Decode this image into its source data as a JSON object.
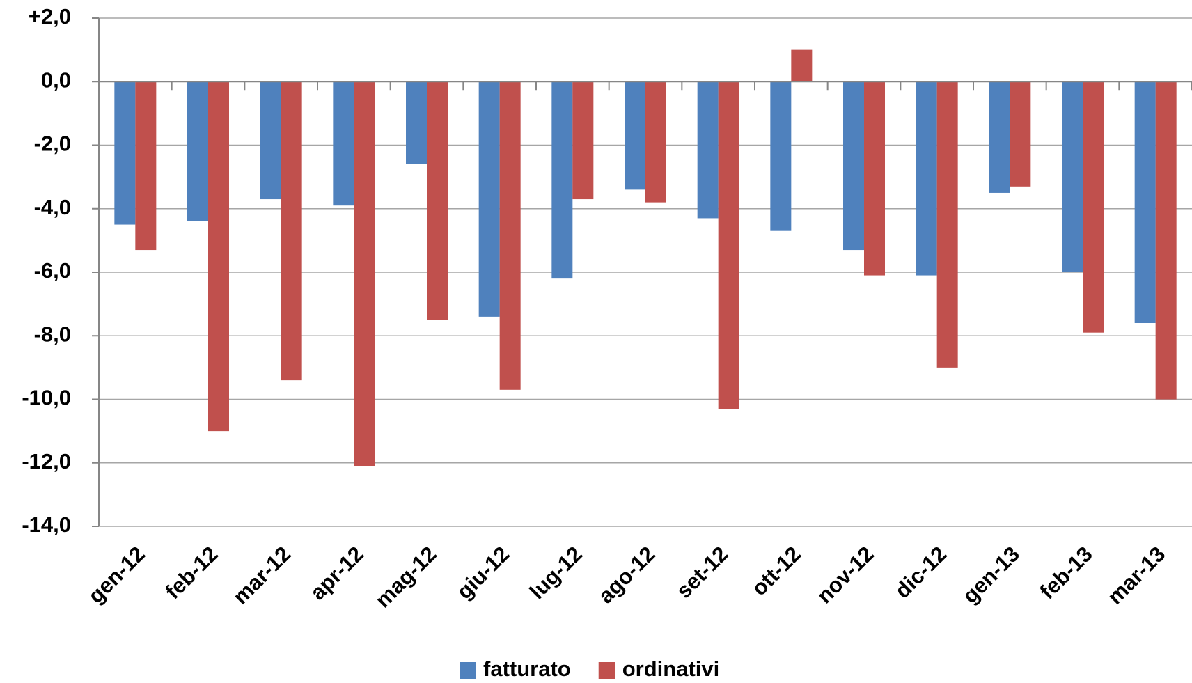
{
  "chart_data": {
    "type": "bar",
    "categories": [
      "gen-12",
      "feb-12",
      "mar-12",
      "apr-12",
      "mag-12",
      "giu-12",
      "lug-12",
      "ago-12",
      "set-12",
      "ott-12",
      "nov-12",
      "dic-12",
      "gen-13",
      "feb-13",
      "mar-13"
    ],
    "series": [
      {
        "name": "fatturato",
        "color": "#4f81bd",
        "values": [
          -4.5,
          -4.4,
          -3.7,
          -3.9,
          -2.6,
          -7.4,
          -6.2,
          -3.4,
          -4.3,
          -4.7,
          -5.3,
          -6.1,
          -3.5,
          -6.0,
          -7.6
        ]
      },
      {
        "name": "ordinativi",
        "color": "#c0504d",
        "values": [
          -5.3,
          -11.0,
          -9.4,
          -12.1,
          -7.5,
          -9.7,
          -3.7,
          -3.8,
          -10.3,
          1.0,
          -6.1,
          -9.0,
          -3.3,
          -7.9,
          -10.0
        ]
      }
    ],
    "ylim": [
      -14,
      2
    ],
    "yticks": [
      {
        "value": 2,
        "label": "+2,0"
      },
      {
        "value": 0,
        "label": "0,0"
      },
      {
        "value": -2,
        "label": "-2,0"
      },
      {
        "value": -4,
        "label": "-4,0"
      },
      {
        "value": -6,
        "label": "-6,0"
      },
      {
        "value": -8,
        "label": "-8,0"
      },
      {
        "value": -10,
        "label": "-10,0"
      },
      {
        "value": -12,
        "label": "-12,0"
      },
      {
        "value": -14,
        "label": "-14,0"
      }
    ],
    "grid": true,
    "legend": "bottom"
  }
}
